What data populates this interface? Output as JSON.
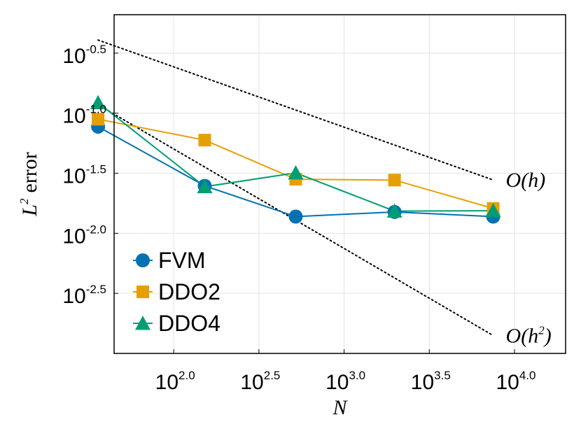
{
  "chart_data": {
    "type": "line",
    "title": "",
    "xlabel": "N",
    "ylabel": {
      "symbol": "L",
      "sup": "2",
      "text": "error"
    },
    "x_scale": "log10",
    "y_scale": "log10",
    "xlim": [
      1.65,
      4.3
    ],
    "ylim": [
      -3.0,
      -0.18
    ],
    "xticks": [
      {
        "value": 2.0,
        "base": "10",
        "exp": "2.0"
      },
      {
        "value": 2.5,
        "base": "10",
        "exp": "2.5"
      },
      {
        "value": 3.0,
        "base": "10",
        "exp": "3.0"
      },
      {
        "value": 3.5,
        "base": "10",
        "exp": "3.5"
      },
      {
        "value": 4.0,
        "base": "10",
        "exp": "4.0"
      }
    ],
    "yticks": [
      {
        "value": -0.5,
        "base": "10",
        "exp": "-0.5"
      },
      {
        "value": -1.0,
        "base": "10",
        "exp": "-1.0"
      },
      {
        "value": -1.5,
        "base": "10",
        "exp": "-1.5"
      },
      {
        "value": -2.0,
        "base": "10",
        "exp": "-2.0"
      },
      {
        "value": -2.5,
        "base": "10",
        "exp": "-2.5"
      }
    ],
    "grid": true,
    "series": [
      {
        "name": "FVM",
        "color": "#0072b2",
        "marker": "circle",
        "x": [
          1.556,
          2.182,
          2.716,
          3.296,
          3.875
        ],
        "y": [
          -1.112,
          -1.605,
          -1.861,
          -1.822,
          -1.861
        ]
      },
      {
        "name": "DDO2",
        "color": "#e69f00",
        "marker": "square",
        "x": [
          1.556,
          2.182,
          2.716,
          3.296,
          3.875
        ],
        "y": [
          -1.05,
          -1.224,
          -1.55,
          -1.557,
          -1.793
        ]
      },
      {
        "name": "DDO4",
        "color": "#009e73",
        "marker": "triangle",
        "x": [
          1.556,
          2.182,
          2.716,
          3.296,
          3.875
        ],
        "y": [
          -0.913,
          -1.612,
          -1.497,
          -1.815,
          -1.812
        ]
      }
    ],
    "reference_lines": [
      {
        "label_base": "O(h",
        "label_sup": "",
        "label_end": ")",
        "style": "dotted",
        "color": "#000000",
        "x": [
          1.556,
          3.875
        ],
        "y": [
          -0.391,
          -1.556
        ]
      },
      {
        "label_base": "O(h",
        "label_sup": "2",
        "label_end": ")",
        "style": "dotted",
        "color": "#000000",
        "x": [
          1.556,
          3.875
        ],
        "y": [
          -0.93,
          -2.851
        ]
      }
    ],
    "legend_position": "bottom-left"
  }
}
